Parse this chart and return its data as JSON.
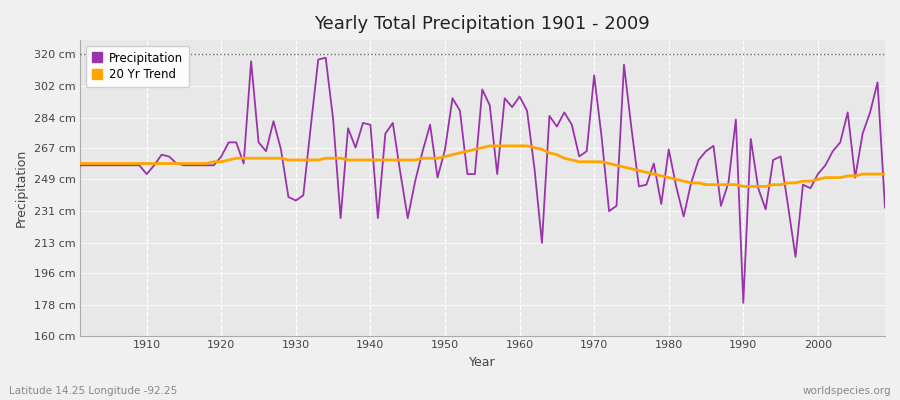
{
  "title": "Yearly Total Precipitation 1901 - 2009",
  "xlabel": "Year",
  "ylabel": "Precipitation",
  "subtitle_left": "Latitude 14.25 Longitude -92.25",
  "subtitle_right": "worldspecies.org",
  "ylim": [
    160,
    328
  ],
  "yticks": [
    160,
    178,
    196,
    213,
    231,
    249,
    267,
    284,
    302,
    320
  ],
  "ytick_labels": [
    "160 cm",
    "178 cm",
    "196 cm",
    "213 cm",
    "231 cm",
    "249 cm",
    "267 cm",
    "284 cm",
    "302 cm",
    "320 cm"
  ],
  "xlim": [
    1901,
    2009
  ],
  "xticks": [
    1910,
    1920,
    1930,
    1940,
    1950,
    1960,
    1970,
    1980,
    1990,
    2000
  ],
  "precip_color": "#9933AA",
  "trend_color": "#FFA500",
  "fig_bg_color": "#F0F0F0",
  "plot_bg_color": "#E8E8E8",
  "years": [
    1901,
    1902,
    1903,
    1904,
    1905,
    1906,
    1907,
    1908,
    1909,
    1910,
    1911,
    1912,
    1913,
    1914,
    1915,
    1916,
    1917,
    1918,
    1919,
    1920,
    1921,
    1922,
    1923,
    1924,
    1925,
    1926,
    1927,
    1928,
    1929,
    1930,
    1931,
    1932,
    1933,
    1934,
    1935,
    1936,
    1937,
    1938,
    1939,
    1940,
    1941,
    1942,
    1943,
    1944,
    1945,
    1946,
    1947,
    1948,
    1949,
    1950,
    1951,
    1952,
    1953,
    1954,
    1955,
    1956,
    1957,
    1958,
    1959,
    1960,
    1961,
    1962,
    1963,
    1964,
    1965,
    1966,
    1967,
    1968,
    1969,
    1970,
    1971,
    1972,
    1973,
    1974,
    1975,
    1976,
    1977,
    1978,
    1979,
    1980,
    1981,
    1982,
    1983,
    1984,
    1985,
    1986,
    1987,
    1988,
    1989,
    1990,
    1991,
    1992,
    1993,
    1994,
    1995,
    1996,
    1997,
    1998,
    1999,
    2000,
    2001,
    2002,
    2003,
    2004,
    2005,
    2006,
    2007,
    2008,
    2009
  ],
  "precip": [
    257,
    257,
    257,
    257,
    257,
    257,
    257,
    257,
    257,
    252,
    257,
    263,
    262,
    258,
    257,
    257,
    257,
    257,
    257,
    262,
    270,
    270,
    258,
    316,
    270,
    265,
    282,
    266,
    239,
    237,
    240,
    279,
    317,
    318,
    283,
    227,
    278,
    267,
    281,
    280,
    227,
    275,
    281,
    253,
    227,
    248,
    265,
    280,
    250,
    266,
    295,
    288,
    252,
    252,
    300,
    291,
    252,
    295,
    290,
    296,
    288,
    255,
    213,
    285,
    279,
    287,
    280,
    262,
    265,
    308,
    273,
    231,
    234,
    314,
    278,
    245,
    246,
    258,
    235,
    266,
    245,
    228,
    247,
    260,
    265,
    268,
    234,
    247,
    283,
    179,
    272,
    244,
    232,
    260,
    262,
    234,
    205,
    246,
    244,
    252,
    257,
    265,
    270,
    287,
    250,
    275,
    287,
    304,
    233
  ],
  "trend": [
    258,
    258,
    258,
    258,
    258,
    258,
    258,
    258,
    258,
    258,
    258,
    258,
    258,
    258,
    258,
    258,
    258,
    258,
    259,
    259,
    260,
    261,
    261,
    261,
    261,
    261,
    261,
    261,
    260,
    260,
    260,
    260,
    260,
    261,
    261,
    261,
    260,
    260,
    260,
    260,
    260,
    260,
    260,
    260,
    260,
    260,
    261,
    261,
    261,
    262,
    263,
    264,
    265,
    266,
    267,
    268,
    268,
    268,
    268,
    268,
    268,
    267,
    266,
    264,
    263,
    261,
    260,
    259,
    259,
    259,
    259,
    258,
    257,
    256,
    255,
    254,
    253,
    252,
    251,
    250,
    249,
    248,
    247,
    247,
    246,
    246,
    246,
    246,
    246,
    245,
    245,
    245,
    245,
    246,
    246,
    247,
    247,
    248,
    248,
    249,
    250,
    250,
    250,
    251,
    251,
    252,
    252,
    252,
    252
  ]
}
